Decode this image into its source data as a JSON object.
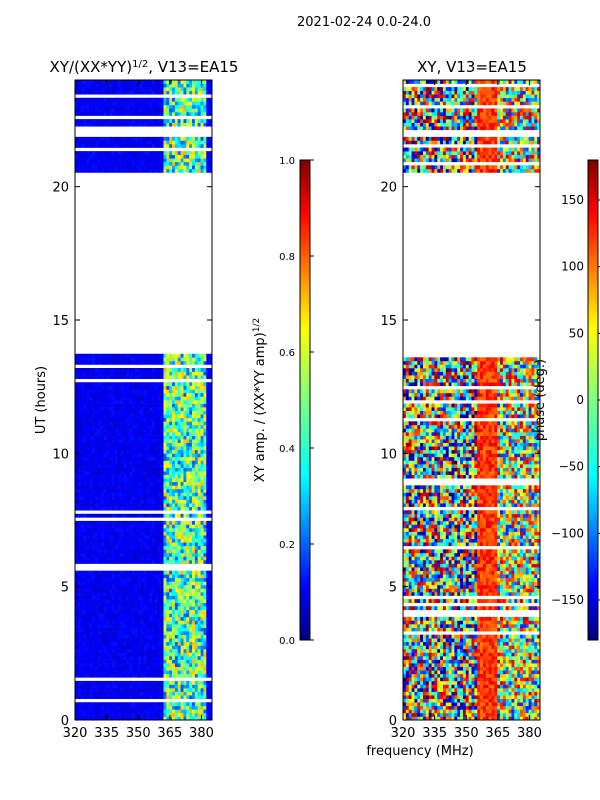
{
  "suptitle": "2021-02-24 0.0-24.0",
  "xlabel_shared": "frequency (MHz)",
  "colors": {
    "jet": [
      "#00007f",
      "#0000ff",
      "#007fff",
      "#00ffff",
      "#7fff7f",
      "#ffff00",
      "#ff7f00",
      "#ff0000",
      "#7f0000"
    ]
  },
  "chart_data": [
    {
      "type": "heatmap",
      "title": "XY/(XX*YY)^1/2, V13=EA15",
      "title_main": "XY/(XX*YY)",
      "title_exp": "1/2",
      "title_tail": ", V13=EA15",
      "xlabel": "",
      "ylabel": "UT (hours)",
      "xlim": [
        320,
        385
      ],
      "ylim": [
        0,
        24
      ],
      "xticks": [
        "320",
        "335",
        "350",
        "365",
        "380"
      ],
      "yticks": [
        "0",
        "5",
        "10",
        "15",
        "20"
      ],
      "data_gaps_hours": [
        [
          13.75,
          20.5
        ],
        [
          21.9,
          22.1
        ]
      ],
      "colorbar": {
        "label": "XY amp. / (XX*YY amp)^1/2",
        "label_main": "XY amp. / (XX*YY amp)",
        "label_exp": "1/2",
        "range": [
          0.0,
          1.0
        ],
        "ticks": [
          "0.0",
          "0.2",
          "0.4",
          "0.6",
          "0.8",
          "1.0"
        ]
      }
    },
    {
      "type": "heatmap",
      "title": "XY, V13=EA15",
      "xlabel": "frequency (MHz)",
      "ylabel": "",
      "xlim": [
        320,
        385
      ],
      "ylim": [
        0,
        24
      ],
      "xticks": [
        "320",
        "335",
        "350",
        "365",
        "380"
      ],
      "yticks": [
        "0",
        "5",
        "10",
        "15",
        "20"
      ],
      "data_gaps_hours": [
        [
          13.75,
          20.5
        ],
        [
          21.9,
          22.1
        ]
      ],
      "colorbar": {
        "label": "phase (deg.)",
        "range": [
          -180,
          180
        ],
        "ticks": [
          "−150",
          "−100",
          "−50",
          "0",
          "50",
          "100",
          "150"
        ]
      }
    }
  ]
}
